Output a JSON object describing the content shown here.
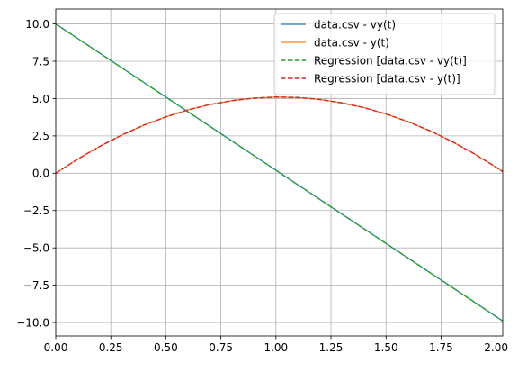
{
  "chart_data": {
    "type": "line",
    "title": "",
    "xlabel": "",
    "ylabel": "",
    "xlim": [
      0,
      2.03
    ],
    "ylim": [
      -10.9,
      11.0
    ],
    "grid": true,
    "legend_position": "top-right",
    "x_ticks": [
      0.0,
      0.25,
      0.5,
      0.75,
      1.0,
      1.25,
      1.5,
      1.75,
      2.0
    ],
    "x_tick_labels": [
      "0.00",
      "0.25",
      "0.50",
      "0.75",
      "1.00",
      "1.25",
      "1.50",
      "1.75",
      "2.00"
    ],
    "y_ticks": [
      10.0,
      7.5,
      5.0,
      2.5,
      0.0,
      -2.5,
      -5.0,
      -7.5,
      -10.0
    ],
    "y_tick_labels": [
      "10.0",
      "7.5",
      "5.0",
      "2.5",
      "0.0",
      "−2.5",
      "−5.0",
      "−7.5",
      "−10.0"
    ],
    "series": [
      {
        "name": "data.csv - vy(t)",
        "color": "#1f77b4",
        "style": "solid",
        "x": [
          0.0,
          0.25,
          0.5,
          0.75,
          1.0,
          1.25,
          1.5,
          1.75,
          2.0,
          2.03
        ],
        "y": [
          10.0,
          7.55,
          5.1,
          2.65,
          0.2,
          -2.25,
          -4.7,
          -7.15,
          -9.6,
          -9.9
        ]
      },
      {
        "name": "data.csv - y(t)",
        "color": "#ff7f0e",
        "style": "solid",
        "x": [
          0.0,
          0.1,
          0.2,
          0.3,
          0.4,
          0.5,
          0.6,
          0.7,
          0.8,
          0.9,
          1.0,
          1.1,
          1.2,
          1.3,
          1.4,
          1.5,
          1.6,
          1.7,
          1.8,
          1.9,
          2.0,
          2.03
        ],
        "y": [
          0.0,
          0.95,
          1.8,
          2.56,
          3.22,
          3.77,
          4.24,
          4.6,
          4.86,
          5.03,
          5.1,
          5.07,
          4.94,
          4.71,
          4.39,
          3.97,
          3.45,
          2.84,
          2.12,
          1.31,
          0.4,
          0.11
        ]
      },
      {
        "name": "Regression [data.csv - vy(t)]",
        "color": "#2ca02c",
        "style": "dashed",
        "x": [
          0.0,
          0.25,
          0.5,
          0.75,
          1.0,
          1.25,
          1.5,
          1.75,
          2.0,
          2.03
        ],
        "y": [
          10.0,
          7.55,
          5.1,
          2.65,
          0.2,
          -2.25,
          -4.7,
          -7.15,
          -9.6,
          -9.9
        ]
      },
      {
        "name": "Regression [data.csv - y(t)]",
        "color": "#d62728",
        "style": "dashed",
        "x": [
          0.0,
          0.1,
          0.2,
          0.3,
          0.4,
          0.5,
          0.6,
          0.7,
          0.8,
          0.9,
          1.0,
          1.1,
          1.2,
          1.3,
          1.4,
          1.5,
          1.6,
          1.7,
          1.8,
          1.9,
          2.0,
          2.03
        ],
        "y": [
          0.0,
          0.95,
          1.8,
          2.56,
          3.22,
          3.77,
          4.24,
          4.6,
          4.86,
          5.03,
          5.1,
          5.07,
          4.94,
          4.71,
          4.39,
          3.97,
          3.45,
          2.84,
          2.12,
          1.31,
          0.4,
          0.11
        ]
      }
    ]
  }
}
